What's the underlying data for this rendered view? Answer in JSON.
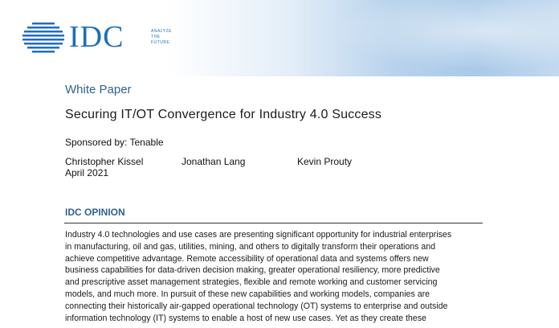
{
  "logo": {
    "name": "IDC",
    "tagline": [
      "ANALYZE",
      "THE",
      "FUTURE"
    ]
  },
  "document": {
    "type": "White Paper",
    "title": "Securing IT/OT Convergence for Industry 4.0 Success",
    "sponsor": "Sponsored by: Tenable",
    "authors": [
      "Christopher Kissel",
      "Jonathan Lang",
      "Kevin Prouty"
    ],
    "date": "April 2021",
    "section": {
      "heading": "IDC OPINION",
      "lines": [
        "Industry 4.0 technologies and use cases are presenting significant opportunity for industrial enterprises",
        "in manufacturing, oil and gas, utilities, mining, and others to digitally transform their operations and",
        "achieve competitive advantage. Remote accessibility of operational data and systems offers new",
        "business capabilities for data-driven decision making, greater operational resiliency, more predictive",
        "and prescriptive asset management strategies, flexible and remote working and customer servicing",
        "models, and much more. In pursuit of these new capabilities and working models, companies are",
        "connecting their historically air-gapped operational technology (OT) systems to enterprise and outside",
        "information technology (IT) systems to enable a host of new use cases. Yet as they create these"
      ]
    }
  }
}
